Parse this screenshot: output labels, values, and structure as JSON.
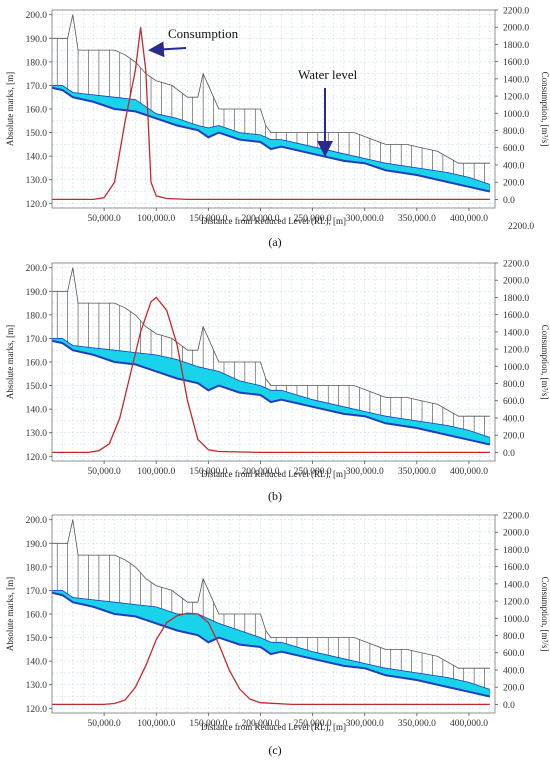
{
  "chart_data": [
    {
      "type": "line",
      "caption": "(a)",
      "xlabel": "Distance from Reduced Level (RL), [m]",
      "ylabel": "Absolute marks, [m]",
      "y2label": "Consumption, [m³/s]",
      "xlim": [
        0,
        425000
      ],
      "ylim": [
        118,
        202
      ],
      "y2lim": [
        -100,
        2200
      ],
      "xticks": [
        50000,
        100000,
        150000,
        200000,
        250000,
        300000,
        350000,
        400000
      ],
      "xtick_labels": [
        "50,000.0",
        "100,000.0",
        "150,000.0",
        "200,000.0",
        "250,000.0",
        "300,000.0",
        "350,000.0",
        "400,000.0"
      ],
      "yticks": [
        120,
        130,
        140,
        150,
        160,
        170,
        180,
        190,
        200
      ],
      "ytick_labels": [
        "120.0",
        "130.0",
        "140.0",
        "150.0",
        "160.0",
        "170.0",
        "180.0",
        "190.0",
        "200.0"
      ],
      "y2ticks": [
        0,
        200,
        400,
        600,
        800,
        1000,
        1200,
        1400,
        1600,
        1800,
        2000,
        2200
      ],
      "y2tick_labels": [
        "0.0",
        "200.0",
        "400.0",
        "600.0",
        "800.0",
        "1000.0",
        "1200.0",
        "1400.0",
        "1600.0",
        "1800.0",
        "2000.0",
        "2200.0"
      ],
      "extra_label": "2200.0",
      "grid": true,
      "annotations": [
        {
          "text": "Consumption",
          "x": 135000,
          "y": 196
        },
        {
          "text": "Water level",
          "x": 300000,
          "y": 172
        }
      ],
      "series": [
        {
          "key": "bed",
          "color": "#1f3fbf",
          "x": [
            0,
            10000,
            20000,
            40000,
            60000,
            80000,
            100000,
            120000,
            140000,
            150000,
            160000,
            180000,
            200000,
            210000,
            220000,
            250000,
            280000,
            300000,
            320000,
            350000,
            380000,
            400000,
            420000
          ],
          "y": [
            169,
            168,
            165,
            163,
            160,
            159,
            156,
            153,
            151,
            148,
            150,
            147,
            146,
            143,
            144,
            141,
            138,
            137,
            134,
            132,
            129,
            127,
            125
          ]
        },
        {
          "key": "water",
          "color": "#00bcd4",
          "x": [
            0,
            10000,
            20000,
            40000,
            60000,
            80000,
            100000,
            120000,
            140000,
            150000,
            160000,
            180000,
            200000,
            210000,
            220000,
            250000,
            280000,
            300000,
            320000,
            350000,
            380000,
            400000,
            420000
          ],
          "y": [
            170,
            170,
            167,
            166,
            165,
            164,
            158,
            156,
            153,
            152,
            153,
            150,
            149,
            147,
            147,
            144,
            141,
            139,
            137,
            135,
            133,
            131,
            128
          ]
        },
        {
          "key": "banks",
          "color": "#555555",
          "x": [
            0,
            5000,
            15000,
            20000,
            25000,
            35000,
            40000,
            50000,
            60000,
            70000,
            80000,
            90000,
            100000,
            115000,
            130000,
            140000,
            145000,
            150000,
            155000,
            160000,
            180000,
            200000,
            205000,
            210000,
            230000,
            250000,
            290000,
            320000,
            340000,
            370000,
            390000,
            420000
          ],
          "y": [
            190,
            190,
            190,
            200,
            185,
            185,
            185,
            185,
            185,
            183,
            180,
            175,
            172,
            170,
            165,
            165,
            175,
            170,
            165,
            160,
            160,
            160,
            153,
            150,
            150,
            150,
            150,
            145,
            145,
            142,
            137,
            137
          ]
        },
        {
          "key": "consumption",
          "color": "#c62828",
          "x": [
            0,
            40000,
            50000,
            60000,
            70000,
            80000,
            85000,
            90000,
            95000,
            100000,
            110000,
            130000,
            200000,
            300000,
            420000
          ],
          "y": [
            0,
            0,
            20,
            200,
            900,
            1500,
            2000,
            1500,
            200,
            40,
            10,
            0,
            0,
            0,
            0
          ]
        }
      ]
    },
    {
      "type": "line",
      "caption": "(b)",
      "xlabel": "Distance from Reduced Level (RL), [m]",
      "ylabel": "Absolute marks, [m]",
      "y2label": "Consumption, [m³/s]",
      "xlim": [
        0,
        425000
      ],
      "ylim": [
        118,
        202
      ],
      "y2lim": [
        -100,
        2200
      ],
      "xticks": [
        50000,
        100000,
        150000,
        200000,
        250000,
        300000,
        350000,
        400000
      ],
      "xtick_labels": [
        "50,000.0",
        "100,000.0",
        "150,000.0",
        "200,000.0",
        "250,000.0",
        "300,000.0",
        "350,000.0",
        "400,000.0"
      ],
      "yticks": [
        120,
        130,
        140,
        150,
        160,
        170,
        180,
        190,
        200
      ],
      "ytick_labels": [
        "120.0",
        "130.0",
        "140.0",
        "150.0",
        "160.0",
        "170.0",
        "180.0",
        "190.0",
        "200.0"
      ],
      "y2ticks": [
        0,
        200,
        400,
        600,
        800,
        1000,
        1200,
        1400,
        1600,
        1800,
        2000,
        2200
      ],
      "y2tick_labels": [
        "0.0",
        "200.0",
        "400.0",
        "600.0",
        "800.0",
        "1000.0",
        "1200.0",
        "1400.0",
        "1600.0",
        "1800.0",
        "2000.0",
        "2200.0"
      ],
      "grid": true,
      "annotations": [],
      "series": [
        {
          "key": "bed",
          "color": "#1f3fbf",
          "x": [
            0,
            10000,
            20000,
            40000,
            60000,
            80000,
            100000,
            120000,
            140000,
            150000,
            160000,
            180000,
            200000,
            210000,
            220000,
            250000,
            280000,
            300000,
            320000,
            350000,
            380000,
            400000,
            420000
          ],
          "y": [
            169,
            168,
            165,
            163,
            160,
            159,
            156,
            153,
            151,
            148,
            150,
            147,
            146,
            143,
            144,
            141,
            138,
            137,
            134,
            132,
            129,
            127,
            125
          ]
        },
        {
          "key": "water",
          "color": "#00bcd4",
          "x": [
            0,
            10000,
            20000,
            40000,
            60000,
            80000,
            100000,
            120000,
            140000,
            150000,
            160000,
            180000,
            200000,
            210000,
            220000,
            250000,
            280000,
            300000,
            320000,
            350000,
            380000,
            400000,
            420000
          ],
          "y": [
            170,
            170,
            167,
            166,
            165,
            164,
            163,
            161,
            158,
            157,
            156,
            152,
            150,
            148,
            148,
            144,
            141,
            139,
            137,
            135,
            133,
            131,
            128
          ]
        },
        {
          "key": "banks",
          "color": "#555555",
          "x": [
            0,
            5000,
            15000,
            20000,
            25000,
            35000,
            40000,
            50000,
            60000,
            70000,
            80000,
            90000,
            100000,
            115000,
            130000,
            140000,
            145000,
            150000,
            155000,
            160000,
            180000,
            200000,
            205000,
            210000,
            230000,
            250000,
            290000,
            320000,
            340000,
            370000,
            390000,
            420000
          ],
          "y": [
            190,
            190,
            190,
            200,
            185,
            185,
            185,
            185,
            185,
            183,
            180,
            175,
            172,
            170,
            165,
            165,
            175,
            170,
            165,
            160,
            160,
            160,
            153,
            150,
            150,
            150,
            150,
            145,
            145,
            142,
            137,
            137
          ]
        },
        {
          "key": "consumption",
          "color": "#c62828",
          "x": [
            0,
            35000,
            45000,
            55000,
            65000,
            75000,
            85000,
            95000,
            100000,
            110000,
            120000,
            130000,
            140000,
            150000,
            160000,
            200000,
            420000
          ],
          "y": [
            0,
            0,
            20,
            100,
            400,
            900,
            1400,
            1750,
            1800,
            1650,
            1250,
            600,
            150,
            30,
            10,
            0,
            0
          ]
        }
      ]
    },
    {
      "type": "line",
      "caption": "(c)",
      "xlabel": "Distance from Reduced Level (RL), [m]",
      "ylabel": "Absolute marks, [m]",
      "y2label": "Consumption, [m³/s]",
      "xlim": [
        0,
        425000
      ],
      "ylim": [
        118,
        202
      ],
      "y2lim": [
        -100,
        2200
      ],
      "xticks": [
        50000,
        100000,
        150000,
        200000,
        250000,
        300000,
        350000,
        400000
      ],
      "xtick_labels": [
        "50,000.0",
        "100,000.0",
        "150,000.0",
        "200,000.0",
        "250,000.0",
        "300,000.0",
        "350,000.0",
        "400,000.0"
      ],
      "yticks": [
        120,
        130,
        140,
        150,
        160,
        170,
        180,
        190,
        200
      ],
      "ytick_labels": [
        "120.0",
        "130.0",
        "140.0",
        "150.0",
        "160.0",
        "170.0",
        "180.0",
        "190.0",
        "200.0"
      ],
      "y2ticks": [
        0,
        200,
        400,
        600,
        800,
        1000,
        1200,
        1400,
        1600,
        1800,
        2000,
        2200
      ],
      "y2tick_labels": [
        "0.0",
        "200.0",
        "400.0",
        "600.0",
        "800.0",
        "1000.0",
        "1200.0",
        "1400.0",
        "1600.0",
        "1800.0",
        "2000.0",
        "2200.0"
      ],
      "grid": true,
      "annotations": [],
      "series": [
        {
          "key": "bed",
          "color": "#1f3fbf",
          "x": [
            0,
            10000,
            20000,
            40000,
            60000,
            80000,
            100000,
            120000,
            140000,
            150000,
            160000,
            180000,
            200000,
            210000,
            220000,
            250000,
            280000,
            300000,
            320000,
            350000,
            380000,
            400000,
            420000
          ],
          "y": [
            169,
            168,
            165,
            163,
            160,
            159,
            156,
            153,
            151,
            148,
            150,
            147,
            146,
            143,
            144,
            141,
            138,
            137,
            134,
            132,
            129,
            127,
            125
          ]
        },
        {
          "key": "water",
          "color": "#00bcd4",
          "x": [
            0,
            10000,
            20000,
            40000,
            60000,
            80000,
            100000,
            120000,
            140000,
            150000,
            160000,
            180000,
            200000,
            210000,
            220000,
            250000,
            280000,
            300000,
            320000,
            350000,
            380000,
            400000,
            420000
          ],
          "y": [
            170,
            170,
            167,
            166,
            165,
            164,
            163,
            160,
            160,
            158,
            156,
            153,
            150,
            148,
            148,
            144,
            141,
            139,
            137,
            135,
            133,
            131,
            128
          ]
        },
        {
          "key": "banks",
          "color": "#555555",
          "x": [
            0,
            5000,
            15000,
            20000,
            25000,
            35000,
            40000,
            50000,
            60000,
            70000,
            80000,
            90000,
            100000,
            115000,
            130000,
            140000,
            145000,
            150000,
            155000,
            160000,
            180000,
            200000,
            205000,
            210000,
            230000,
            250000,
            290000,
            320000,
            340000,
            370000,
            390000,
            420000
          ],
          "y": [
            190,
            190,
            190,
            200,
            185,
            185,
            185,
            185,
            185,
            183,
            180,
            175,
            172,
            170,
            165,
            165,
            175,
            170,
            165,
            160,
            160,
            160,
            153,
            150,
            150,
            150,
            150,
            145,
            145,
            142,
            137,
            137
          ]
        },
        {
          "key": "consumption",
          "color": "#c62828",
          "x": [
            0,
            50000,
            60000,
            70000,
            80000,
            90000,
            100000,
            110000,
            120000,
            130000,
            140000,
            150000,
            160000,
            170000,
            180000,
            190000,
            200000,
            230000,
            420000
          ],
          "y": [
            0,
            0,
            10,
            50,
            200,
            450,
            750,
            950,
            1030,
            1060,
            1050,
            950,
            700,
            400,
            180,
            60,
            20,
            0,
            0
          ]
        }
      ]
    }
  ]
}
